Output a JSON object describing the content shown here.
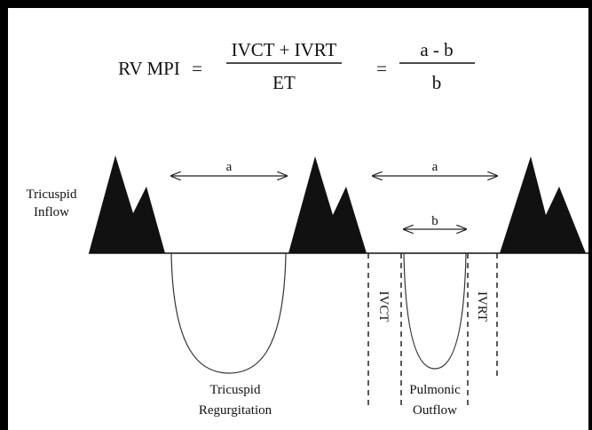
{
  "formula": {
    "lhs": "RV MPI",
    "eq1": "=",
    "numerator1": "IVCT + IVRT",
    "denominator1": "ET",
    "eq2": "=",
    "numerator2": "a - b",
    "denominator2": "b"
  },
  "labels": {
    "inflow": [
      "Tricuspid",
      "Inflow"
    ],
    "arrow_a1": "a",
    "arrow_a2": "a",
    "arrow_b": "b",
    "ivct": "IVCT",
    "ivrt": "IVRT",
    "regurgitation": [
      "Tricuspid",
      "Regurgitation"
    ],
    "outflow": [
      "Pulmonic",
      "Outflow"
    ]
  }
}
